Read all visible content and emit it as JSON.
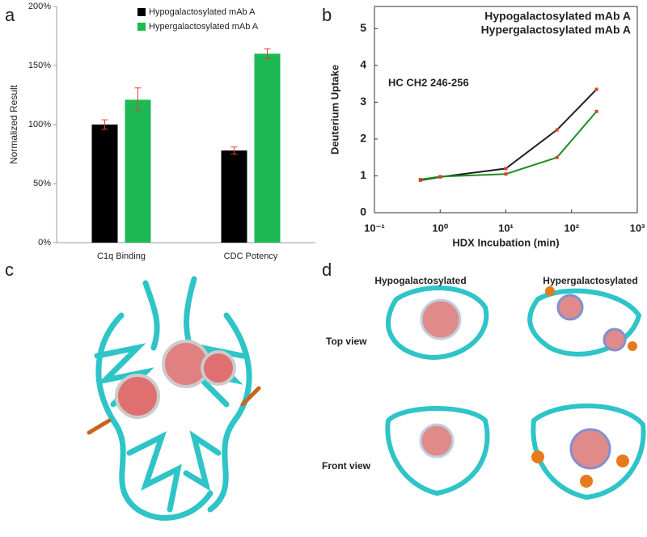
{
  "chart_data": [
    {
      "type": "bar",
      "y_label": "Normalized Result",
      "categories": [
        "C1q Binding",
        "CDC Potency"
      ],
      "series": [
        {
          "name": "Hypogalactosylated mAb A",
          "color": "#000000",
          "values": [
            100,
            78
          ],
          "errors": [
            4,
            3
          ]
        },
        {
          "name": "Hypergalactosylated mAb A",
          "color": "#1db954",
          "values": [
            121,
            160
          ],
          "errors": [
            10,
            4
          ]
        }
      ],
      "error_color": "#e0402a",
      "ylim": [
        0,
        200
      ],
      "yticks": [
        {
          "value": 0,
          "label": "0%"
        },
        {
          "value": 50,
          "label": "50%"
        },
        {
          "value": 100,
          "label": "100%"
        },
        {
          "value": 150,
          "label": "150%"
        },
        {
          "value": 200,
          "label": "200%"
        }
      ]
    },
    {
      "type": "line",
      "x_label": "HDX Incubation (min)",
      "y_label": "Deuterium Uptake",
      "annotation": "HC CH2 246-256",
      "x": [
        0.5,
        1,
        10,
        60,
        240
      ],
      "log_x": true,
      "series": [
        {
          "name": "Hypogalactosylated mAb A",
          "color": "#231f20",
          "values": [
            0.88,
            0.97,
            1.2,
            2.25,
            3.35
          ]
        },
        {
          "name": "Hypergalactosylated mAb A",
          "color": "#1a8c1a",
          "values": [
            0.9,
            0.98,
            1.05,
            1.5,
            2.75
          ]
        }
      ],
      "marker_color": "#e0402a",
      "xlim": [
        0.1,
        1000
      ],
      "xticks": [
        {
          "value": 0.1,
          "label": "10⁻¹"
        },
        {
          "value": 1,
          "label": "10⁰"
        },
        {
          "value": 10,
          "label": "10¹"
        },
        {
          "value": 100,
          "label": "10²"
        },
        {
          "value": 1000,
          "label": "10³"
        }
      ],
      "ylim": [
        0,
        5.6
      ],
      "yticks": [
        0,
        1,
        2,
        3,
        4,
        5
      ]
    }
  ],
  "panels": {
    "a": "a",
    "b": "b",
    "c": "c",
    "d": "d",
    "d_columns": [
      "Hypogalactosylated",
      "Hypergalactosylated"
    ],
    "d_rows": [
      "Top view",
      "Front view"
    ]
  }
}
